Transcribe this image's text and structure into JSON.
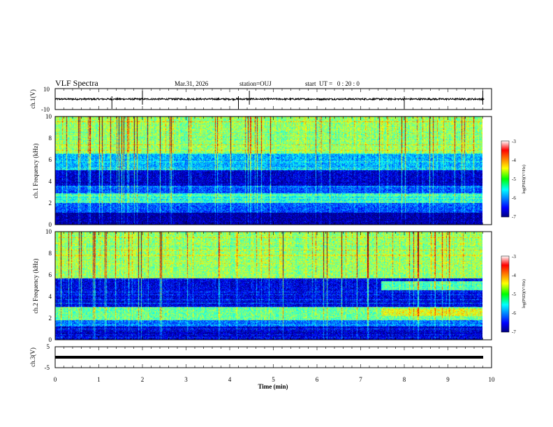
{
  "header": {
    "title": "VLF Spectra",
    "date": "Mar.31, 2026",
    "station": "station=OUJ",
    "start_time": "start  UT =   0 : 20 : 0"
  },
  "chart_data": [
    {
      "id": "ch1-waveform",
      "type": "line",
      "ylabel": "ch.1(V)",
      "ylim": [
        -10,
        10
      ],
      "yticks": [
        "10",
        "-10"
      ],
      "x": "time_min",
      "xlim": [
        0,
        10
      ],
      "baseline": 0,
      "spike_times_min": [
        1.3,
        2.0,
        4.2,
        4.45,
        8.0,
        9.8
      ]
    },
    {
      "id": "ch1-spectrogram",
      "type": "heatmap",
      "ylabel": "ch.1 Frequency (kHz)",
      "ylim": [
        0,
        10
      ],
      "yticks": [
        "0",
        "2",
        "4",
        "6",
        "8",
        "10"
      ],
      "xlim": [
        0,
        9.83
      ],
      "colorbar": {
        "label": "log(PSD)(V²/Hz)",
        "range": [
          -7,
          -3
        ],
        "ticks": [
          "-3",
          "-4",
          "-5",
          "-6",
          "-7"
        ]
      },
      "bands_kHz": [
        {
          "from": 0.0,
          "to": 1.1,
          "level": -6.9
        },
        {
          "from": 1.1,
          "to": 2.0,
          "level": -6.2
        },
        {
          "from": 2.0,
          "to": 2.9,
          "level": -5.4
        },
        {
          "from": 2.9,
          "to": 3.6,
          "level": -6.2
        },
        {
          "from": 3.6,
          "to": 5.0,
          "level": -6.7
        },
        {
          "from": 5.0,
          "to": 6.6,
          "level": -5.8
        },
        {
          "from": 6.6,
          "to": 10.0,
          "level": -4.9
        }
      ]
    },
    {
      "id": "ch2-spectrogram",
      "type": "heatmap",
      "ylabel": "ch.2 Frequency (kHz)",
      "ylim": [
        0,
        10
      ],
      "yticks": [
        "0",
        "2",
        "4",
        "6",
        "8",
        "10"
      ],
      "xlim": [
        0,
        9.83
      ],
      "colorbar": {
        "label": "log(PSD)(V²/Hz)",
        "range": [
          -7,
          -3
        ],
        "ticks": [
          "-3",
          "-4",
          "-5",
          "-6",
          "-7"
        ]
      },
      "bands_kHz": [
        {
          "from": 0.0,
          "to": 1.2,
          "level": -6.7
        },
        {
          "from": 1.2,
          "to": 1.8,
          "level": -6.1
        },
        {
          "from": 1.8,
          "to": 3.0,
          "level": -5.1
        },
        {
          "from": 3.0,
          "to": 5.7,
          "level": -6.6
        },
        {
          "from": 5.7,
          "to": 10.0,
          "level": -4.9
        }
      ],
      "event": {
        "from_min": 7.5,
        "band_kHz": [
          2.2,
          2.9
        ],
        "level": -4.6
      }
    },
    {
      "id": "ch3-waveform",
      "type": "line",
      "ylabel": "ch.3(V)",
      "ylim": [
        -5,
        5
      ],
      "yticks": [
        "5",
        "0",
        "-5"
      ],
      "xlim": [
        0,
        10
      ],
      "baseline": 0
    }
  ],
  "xaxis": {
    "label": "Time (min)",
    "ticks": [
      "0",
      "1",
      "2",
      "3",
      "4",
      "5",
      "6",
      "7",
      "8",
      "9",
      "10"
    ]
  },
  "colors": {
    "axis": "#000000",
    "background": "#ffffff"
  }
}
